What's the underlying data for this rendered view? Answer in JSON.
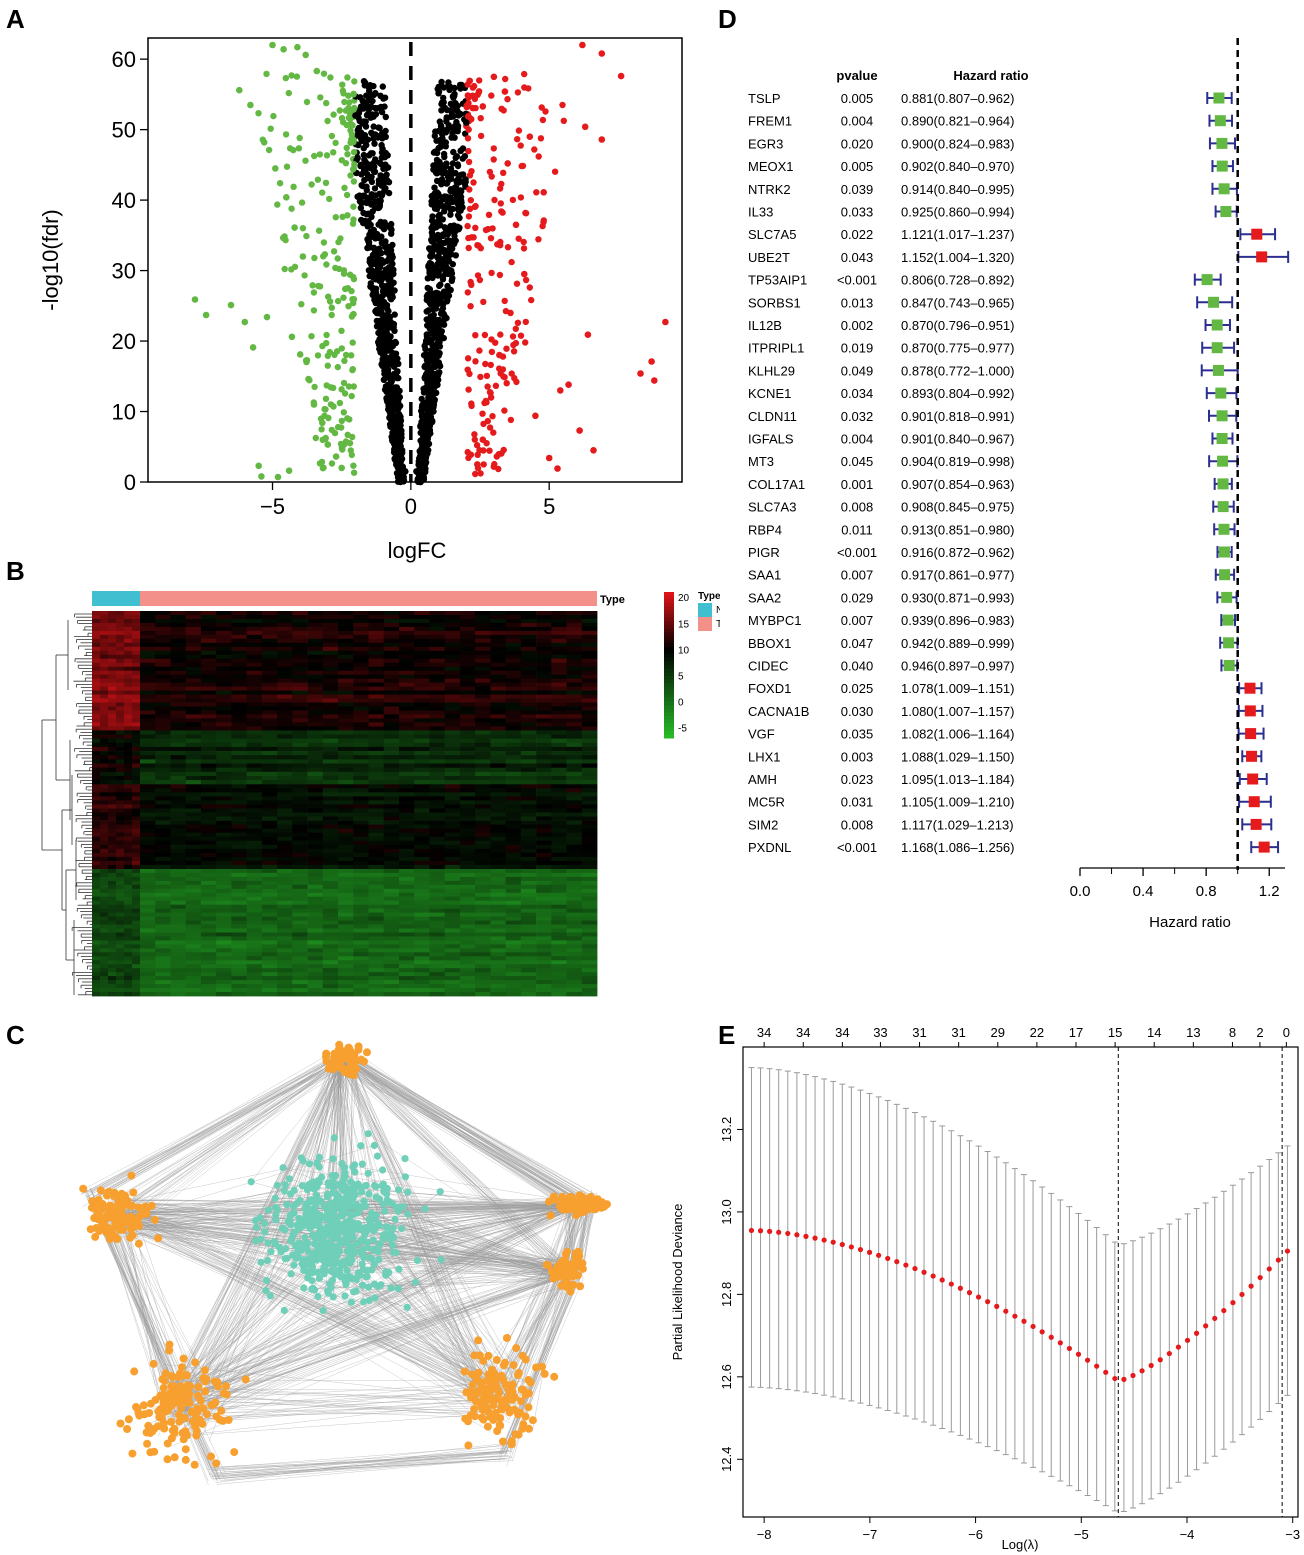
{
  "panel_labels": {
    "a": "A",
    "b": "B",
    "c": "C",
    "d": "D",
    "e": "E"
  },
  "colors": {
    "down": "#63b843",
    "up": "#e41a1c",
    "nonsig": "#000000",
    "normal": "#3fbfcf",
    "tumor": "#f4908a",
    "network_outer": "#f7a030",
    "network_inner": "#6fcfb8",
    "edge": "#9a9a9a",
    "ci": "#2b2f8f",
    "lasso": "#e41a1c"
  },
  "chart_data": [
    {
      "panel": "A",
      "type": "scatter",
      "title": "",
      "xlabel": "logFC",
      "ylabel": "-log10(fdr)",
      "xlim": [
        -9.5,
        9.8
      ],
      "ylim": [
        0,
        63
      ],
      "xticks": [
        -5,
        0,
        5
      ],
      "yticks": [
        0,
        10,
        20,
        30,
        40,
        50,
        60
      ],
      "cutoffs": {
        "logFC": [
          -2,
          2
        ]
      },
      "vline_x": 0,
      "series": [
        {
          "name": "down",
          "color": "#63b843",
          "points": [
            [
              -7.8,
              25.9
            ],
            [
              -7.4,
              23.7
            ],
            [
              -6.5,
              25.1
            ],
            [
              -6.0,
              22.7
            ],
            [
              -5.7,
              19.1
            ],
            [
              -5.2,
              23.4
            ],
            [
              -5.5,
              2.3
            ],
            [
              -5.4,
              0.8
            ],
            [
              -4.8,
              0.7
            ],
            [
              -4.4,
              1.6
            ],
            [
              -6.2,
              55.6
            ],
            [
              -5.8,
              53.5
            ],
            [
              -5.0,
              62.0
            ],
            [
              -4.6,
              61.4
            ],
            [
              -4.1,
              61.7
            ],
            [
              -3.8,
              60.6
            ],
            [
              -3.4,
              58.3
            ],
            [
              -5.3,
              48.2
            ],
            [
              -4.9,
              44.5
            ],
            [
              -4.5,
              40.4
            ],
            [
              -4.2,
              36.1
            ],
            [
              -3.9,
              32.0
            ],
            [
              -4.3,
              20.6
            ],
            [
              -4.0,
              18.1
            ],
            [
              -3.7,
              14.6
            ],
            [
              -3.5,
              11.0
            ],
            [
              -3.2,
              8.4
            ],
            [
              -3.0,
              5.3
            ],
            [
              -2.7,
              3.6
            ],
            [
              -2.5,
              2.0
            ]
          ]
        },
        {
          "name": "up",
          "color": "#e41a1c",
          "points": [
            [
              6.2,
              62.0
            ],
            [
              6.9,
              60.8
            ],
            [
              7.6,
              57.6
            ],
            [
              6.3,
              50.4
            ],
            [
              6.9,
              48.6
            ],
            [
              9.2,
              22.7
            ],
            [
              8.7,
              17.1
            ],
            [
              8.8,
              14.4
            ],
            [
              8.3,
              15.4
            ],
            [
              6.4,
              20.9
            ],
            [
              5.7,
              13.8
            ],
            [
              6.1,
              7.3
            ],
            [
              6.6,
              4.5
            ],
            [
              5.4,
              13.0
            ],
            [
              5.3,
              1.9
            ],
            [
              5.0,
              3.4
            ],
            [
              4.5,
              9.4
            ],
            [
              3.0,
              57.5
            ],
            [
              2.6,
              53.3
            ],
            [
              3.4,
              55.4
            ],
            [
              4.3,
              49.0
            ],
            [
              4.8,
              41.1
            ],
            [
              3.5,
              45.2
            ],
            [
              3.8,
              36.5
            ],
            [
              4.1,
              29.5
            ],
            [
              3.6,
              24.0
            ],
            [
              3.2,
              18.0
            ],
            [
              2.9,
              12.0
            ],
            [
              2.6,
              6.0
            ],
            [
              2.4,
              2.5
            ]
          ]
        },
        {
          "name": "nonsig",
          "color": "#000000",
          "points": [
            [
              -2.0,
              52.0
            ],
            [
              -1.8,
              45.0
            ],
            [
              -1.6,
              38.0
            ],
            [
              -1.4,
              30.0
            ],
            [
              -1.2,
              24.0
            ],
            [
              -1.0,
              18.0
            ],
            [
              -0.8,
              12.0
            ],
            [
              -0.6,
              8.0
            ],
            [
              -0.4,
              4.0
            ],
            [
              -0.2,
              1.5
            ],
            [
              0.2,
              1.5
            ],
            [
              0.4,
              4.0
            ],
            [
              0.6,
              8.0
            ],
            [
              0.8,
              14.0
            ],
            [
              1.0,
              20.0
            ],
            [
              1.2,
              27.0
            ],
            [
              1.4,
              34.0
            ],
            [
              1.6,
              41.0
            ],
            [
              1.8,
              47.0
            ],
            [
              2.0,
              51.0
            ]
          ]
        }
      ]
    },
    {
      "panel": "B",
      "type": "heatmap",
      "legend_title": "Type",
      "legend_items": [
        "N",
        "T"
      ],
      "annotation_label": "Type",
      "colorbar_ticks": [
        20,
        15,
        10,
        5,
        0,
        -5
      ],
      "colorbar_range": [
        -7,
        21
      ],
      "groups": [
        {
          "name": "N",
          "fraction": 0.095
        },
        {
          "name": "T",
          "fraction": 0.905
        }
      ],
      "row_blocks": [
        {
          "size": 0.31,
          "N_value": 16,
          "T_value": 11
        },
        {
          "size": 0.14,
          "N_value": 10,
          "T_value": 6
        },
        {
          "size": 0.22,
          "N_value": 12,
          "T_value": 9
        },
        {
          "size": 0.33,
          "N_value": 4,
          "T_value": 1
        }
      ]
    },
    {
      "panel": "C",
      "type": "network",
      "hub_clusters": 6,
      "center_cluster": "inner"
    },
    {
      "panel": "D",
      "type": "forest",
      "col_headers": {
        "pvalue": "pvalue",
        "hr": "Hazard ratio"
      },
      "xlabel": "Hazard ratio",
      "xlim": [
        0.0,
        1.3
      ],
      "xticks": [
        "0.0",
        "0.4",
        "0.8",
        "1.2"
      ],
      "ref_line": 1,
      "rows": [
        {
          "gene": "TSLP",
          "p": "0.005",
          "hr_text": "0.881(0.807–0.962)",
          "hr": 0.881,
          "lo": 0.807,
          "hi": 0.962
        },
        {
          "gene": "FREM1",
          "p": "0.004",
          "hr_text": "0.890(0.821–0.964)",
          "hr": 0.89,
          "lo": 0.821,
          "hi": 0.964
        },
        {
          "gene": "EGR3",
          "p": "0.020",
          "hr_text": "0.900(0.824–0.983)",
          "hr": 0.9,
          "lo": 0.824,
          "hi": 0.983
        },
        {
          "gene": "MEOX1",
          "p": "0.005",
          "hr_text": "0.902(0.840–0.970)",
          "hr": 0.902,
          "lo": 0.84,
          "hi": 0.97
        },
        {
          "gene": "NTRK2",
          "p": "0.039",
          "hr_text": "0.914(0.840–0.995)",
          "hr": 0.914,
          "lo": 0.84,
          "hi": 0.995
        },
        {
          "gene": "IL33",
          "p": "0.033",
          "hr_text": "0.925(0.860–0.994)",
          "hr": 0.925,
          "lo": 0.86,
          "hi": 0.994
        },
        {
          "gene": "SLC7A5",
          "p": "0.022",
          "hr_text": "1.121(1.017–1.237)",
          "hr": 1.121,
          "lo": 1.017,
          "hi": 1.237
        },
        {
          "gene": "UBE2T",
          "p": "0.043",
          "hr_text": "1.152(1.004–1.320)",
          "hr": 1.152,
          "lo": 1.004,
          "hi": 1.32
        },
        {
          "gene": "TP53AIP1",
          "p": "<0.001",
          "hr_text": "0.806(0.728–0.892)",
          "hr": 0.806,
          "lo": 0.728,
          "hi": 0.892
        },
        {
          "gene": "SORBS1",
          "p": "0.013",
          "hr_text": "0.847(0.743–0.965)",
          "hr": 0.847,
          "lo": 0.743,
          "hi": 0.965
        },
        {
          "gene": "IL12B",
          "p": "0.002",
          "hr_text": "0.870(0.796–0.951)",
          "hr": 0.87,
          "lo": 0.796,
          "hi": 0.951
        },
        {
          "gene": "ITPRIPL1",
          "p": "0.019",
          "hr_text": "0.870(0.775–0.977)",
          "hr": 0.87,
          "lo": 0.775,
          "hi": 0.977
        },
        {
          "gene": "KLHL29",
          "p": "0.049",
          "hr_text": "0.878(0.772–1.000)",
          "hr": 0.878,
          "lo": 0.772,
          "hi": 1.0
        },
        {
          "gene": "KCNE1",
          "p": "0.034",
          "hr_text": "0.893(0.804–0.992)",
          "hr": 0.893,
          "lo": 0.804,
          "hi": 0.992
        },
        {
          "gene": "CLDN11",
          "p": "0.032",
          "hr_text": "0.901(0.818–0.991)",
          "hr": 0.901,
          "lo": 0.818,
          "hi": 0.991
        },
        {
          "gene": "IGFALS",
          "p": "0.004",
          "hr_text": "0.901(0.840–0.967)",
          "hr": 0.901,
          "lo": 0.84,
          "hi": 0.967
        },
        {
          "gene": "MT3",
          "p": "0.045",
          "hr_text": "0.904(0.819–0.998)",
          "hr": 0.904,
          "lo": 0.819,
          "hi": 0.998
        },
        {
          "gene": "COL17A1",
          "p": "0.001",
          "hr_text": "0.907(0.854–0.963)",
          "hr": 0.907,
          "lo": 0.854,
          "hi": 0.963
        },
        {
          "gene": "SLC7A3",
          "p": "0.008",
          "hr_text": "0.908(0.845–0.975)",
          "hr": 0.908,
          "lo": 0.845,
          "hi": 0.975
        },
        {
          "gene": "RBP4",
          "p": "0.011",
          "hr_text": "0.913(0.851–0.980)",
          "hr": 0.913,
          "lo": 0.851,
          "hi": 0.98
        },
        {
          "gene": "PIGR",
          "p": "<0.001",
          "hr_text": "0.916(0.872–0.962)",
          "hr": 0.916,
          "lo": 0.872,
          "hi": 0.962
        },
        {
          "gene": "SAA1",
          "p": "0.007",
          "hr_text": "0.917(0.861–0.977)",
          "hr": 0.917,
          "lo": 0.861,
          "hi": 0.977
        },
        {
          "gene": "SAA2",
          "p": "0.029",
          "hr_text": "0.930(0.871–0.993)",
          "hr": 0.93,
          "lo": 0.871,
          "hi": 0.993
        },
        {
          "gene": "MYBPC1",
          "p": "0.007",
          "hr_text": "0.939(0.896–0.983)",
          "hr": 0.939,
          "lo": 0.896,
          "hi": 0.983
        },
        {
          "gene": "BBOX1",
          "p": "0.047",
          "hr_text": "0.942(0.889–0.999)",
          "hr": 0.942,
          "lo": 0.889,
          "hi": 0.999
        },
        {
          "gene": "CIDEC",
          "p": "0.040",
          "hr_text": "0.946(0.897–0.997)",
          "hr": 0.946,
          "lo": 0.897,
          "hi": 0.997
        },
        {
          "gene": "FOXD1",
          "p": "0.025",
          "hr_text": "1.078(1.009–1.151)",
          "hr": 1.078,
          "lo": 1.009,
          "hi": 1.151
        },
        {
          "gene": "CACNA1B",
          "p": "0.030",
          "hr_text": "1.080(1.007–1.157)",
          "hr": 1.08,
          "lo": 1.007,
          "hi": 1.157
        },
        {
          "gene": "VGF",
          "p": "0.035",
          "hr_text": "1.082(1.006–1.164)",
          "hr": 1.082,
          "lo": 1.006,
          "hi": 1.164
        },
        {
          "gene": "LHX1",
          "p": "0.003",
          "hr_text": "1.088(1.029–1.150)",
          "hr": 1.088,
          "lo": 1.029,
          "hi": 1.15
        },
        {
          "gene": "AMH",
          "p": "0.023",
          "hr_text": "1.095(1.013–1.184)",
          "hr": 1.095,
          "lo": 1.013,
          "hi": 1.184
        },
        {
          "gene": "MC5R",
          "p": "0.031",
          "hr_text": "1.105(1.009–1.210)",
          "hr": 1.105,
          "lo": 1.009,
          "hi": 1.21
        },
        {
          "gene": "SIM2",
          "p": "0.008",
          "hr_text": "1.117(1.029–1.213)",
          "hr": 1.117,
          "lo": 1.029,
          "hi": 1.213
        },
        {
          "gene": "PXDNL",
          "p": "<0.001",
          "hr_text": "1.168(1.086–1.256)",
          "hr": 1.168,
          "lo": 1.086,
          "hi": 1.256
        }
      ]
    },
    {
      "panel": "E",
      "type": "line",
      "xlabel": "Log(λ)",
      "ylabel": "Partial Likelihood Deviance",
      "xlim": [
        -8.2,
        -2.95
      ],
      "ylim": [
        12.26,
        13.4
      ],
      "xticks": [
        -8,
        -7,
        -6,
        -5,
        -4,
        -3
      ],
      "yticks": [
        12.4,
        12.6,
        12.8,
        13.0,
        13.2
      ],
      "top_ticks": [
        {
          "x": -8.0,
          "label": "34"
        },
        {
          "x": -7.63,
          "label": "34"
        },
        {
          "x": -7.26,
          "label": "34"
        },
        {
          "x": -6.9,
          "label": "33"
        },
        {
          "x": -6.53,
          "label": "31"
        },
        {
          "x": -6.16,
          "label": "31"
        },
        {
          "x": -5.79,
          "label": "29"
        },
        {
          "x": -5.42,
          "label": "22"
        },
        {
          "x": -5.05,
          "label": "17"
        },
        {
          "x": -4.68,
          "label": "15"
        },
        {
          "x": -4.31,
          "label": "14"
        },
        {
          "x": -3.94,
          "label": "13"
        },
        {
          "x": -3.57,
          "label": "8"
        },
        {
          "x": -3.31,
          "label": "2"
        },
        {
          "x": -3.06,
          "label": "0"
        }
      ],
      "lambda_min": -4.65,
      "lambda_1se": -3.1,
      "x_start": -8.12,
      "x_end": -3.05,
      "n_points": 60,
      "curve": {
        "start": 12.955,
        "min_x": -4.65,
        "min": 12.59,
        "end": 12.905
      },
      "upper": {
        "start": 13.35,
        "min": 12.92,
        "end": 13.16
      },
      "lower": {
        "start": 12.575,
        "min": 12.27,
        "end": 12.555
      }
    }
  ]
}
